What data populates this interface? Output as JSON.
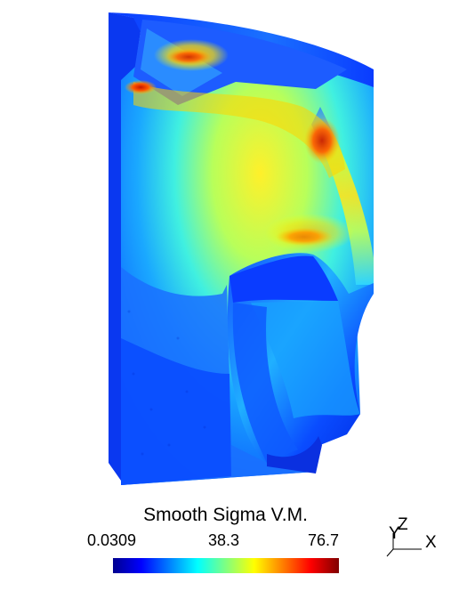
{
  "legend": {
    "title": "Smooth Sigma V.M.",
    "min": "0.0309",
    "mid": "38.3",
    "max": "76.7",
    "colormap": [
      "#00008f",
      "#0000ff",
      "#0080ff",
      "#00ffff",
      "#80ff80",
      "#ffff00",
      "#ff8000",
      "#ff0000",
      "#800000"
    ]
  },
  "axes": {
    "y": "Y",
    "z": "Z",
    "x": "X"
  }
}
